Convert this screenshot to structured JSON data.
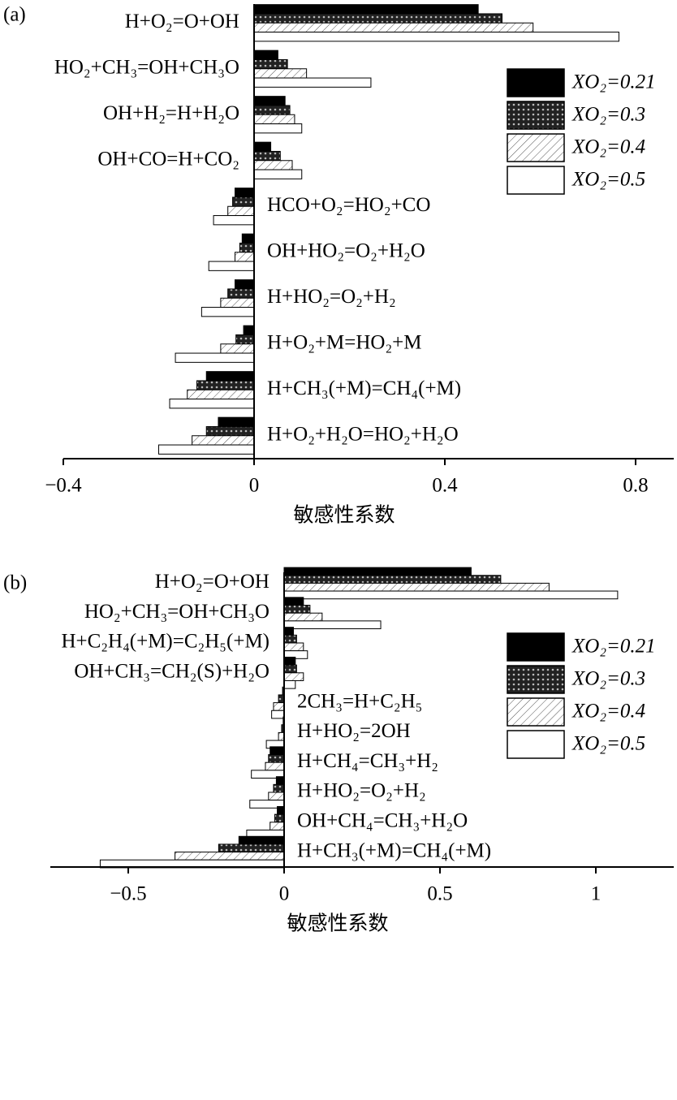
{
  "chart_data": [
    {
      "type": "barh",
      "panel_label": "(a)",
      "x_label": "敏感性系数",
      "categories": [
        "H+O₂=O+OH",
        "HO₂+CH₃=OH+CH₃O",
        "OH+H₂=H+H₂O",
        "OH+CO=H+CO₂",
        "HCO+O₂=HO₂+CO",
        "OH+HO₂=O₂+H₂O",
        "H+HO₂=O₂+H₂",
        "H+O₂+M=HO₂+M",
        "H+CH₃(+M)=CH₄(+M)",
        "H+O₂+H₂O=HO₂+H₂O"
      ],
      "series": [
        {
          "name": "XO₂=0.21",
          "pattern": "solid",
          "values": [
            0.47,
            0.05,
            0.065,
            0.035,
            -0.04,
            -0.025,
            -0.04,
            -0.022,
            -0.1,
            -0.075
          ]
        },
        {
          "name": "XO₂=0.3",
          "pattern": "cross",
          "values": [
            0.52,
            0.07,
            0.075,
            0.055,
            -0.045,
            -0.03,
            -0.055,
            -0.038,
            -0.12,
            -0.1
          ]
        },
        {
          "name": "XO₂=0.4",
          "pattern": "hatch",
          "values": [
            0.585,
            0.11,
            0.085,
            0.08,
            -0.055,
            -0.04,
            -0.07,
            -0.07,
            -0.14,
            -0.13
          ]
        },
        {
          "name": "XO₂=0.5",
          "pattern": "none",
          "values": [
            0.765,
            0.245,
            0.1,
            0.1,
            -0.085,
            -0.095,
            -0.11,
            -0.165,
            -0.177,
            -0.2
          ]
        }
      ],
      "xlim": [
        -0.4,
        0.88
      ],
      "xticks": [
        {
          "value": -0.4,
          "label": "−0.4"
        },
        0,
        0.4,
        0.8
      ]
    },
    {
      "type": "barh",
      "panel_label": "(b)",
      "x_label": "敏感性系数",
      "categories": [
        "H+O₂=O+OH",
        "HO₂+CH₃=OH+CH₃O",
        "H+C₂H₄(+M)=C₂H₅(+M)",
        "OH+CH₃=CH₂(S)+H₂O",
        "2CH₃=H+C₂H₅",
        "H+HO₂=2OH",
        "H+CH₄=CH₃+H₂",
        "H+HO₂=O₂+H₂",
        "OH+CH₄=CH₃+H₂O",
        "H+CH₃(+M)=CH₄(+M)"
      ],
      "series": [
        {
          "name": "XO₂=0.21",
          "pattern": "solid",
          "values": [
            0.6,
            0.062,
            0.03,
            0.036,
            -0.005,
            -0.003,
            -0.045,
            -0.025,
            -0.022,
            -0.145
          ]
        },
        {
          "name": "XO₂=0.3",
          "pattern": "cross",
          "values": [
            0.695,
            0.083,
            0.04,
            0.04,
            -0.018,
            -0.008,
            -0.05,
            -0.034,
            -0.03,
            -0.21
          ]
        },
        {
          "name": "XO₂=0.4",
          "pattern": "hatch",
          "values": [
            0.85,
            0.122,
            0.062,
            0.062,
            -0.034,
            -0.018,
            -0.06,
            -0.05,
            -0.045,
            -0.35
          ]
        },
        {
          "name": "XO₂=0.5",
          "pattern": "none",
          "values": [
            1.07,
            0.31,
            0.075,
            0.036,
            -0.04,
            -0.057,
            -0.105,
            -0.11,
            -0.12,
            -0.59
          ]
        }
      ],
      "xlim": [
        -0.75,
        1.25
      ],
      "xticks": [
        {
          "value": -0.5,
          "label": "−0.5"
        },
        0,
        0.5,
        1.0
      ]
    }
  ]
}
